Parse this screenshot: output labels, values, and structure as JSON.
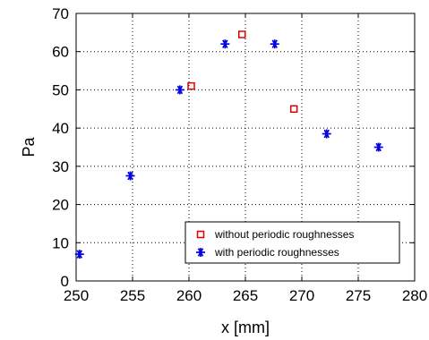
{
  "chart_data": {
    "type": "scatter",
    "title": "",
    "xlabel": "x [mm]",
    "ylabel": "Pa",
    "xlim": [
      250,
      280
    ],
    "ylim": [
      0,
      70
    ],
    "xticks": [
      "250",
      "255",
      "260",
      "265",
      "270",
      "275",
      "280"
    ],
    "yticks": [
      "0",
      "10",
      "20",
      "30",
      "40",
      "50",
      "60",
      "70"
    ],
    "grid": "dotted",
    "legend_position": "bottom-right",
    "series": [
      {
        "name": "without periodic roughnesses",
        "marker": "open-square",
        "color": "#e00000",
        "x": [
          260.2,
          264.7,
          269.3
        ],
        "y": [
          51,
          64.5,
          45
        ]
      },
      {
        "name": "with periodic roughnesses",
        "marker": "asterisk",
        "color": "#0000e0",
        "x": [
          250.3,
          254.8,
          259.2,
          263.2,
          267.6,
          272.2,
          276.8
        ],
        "y": [
          7,
          27.5,
          50,
          62,
          62,
          38.5,
          35
        ]
      }
    ]
  }
}
